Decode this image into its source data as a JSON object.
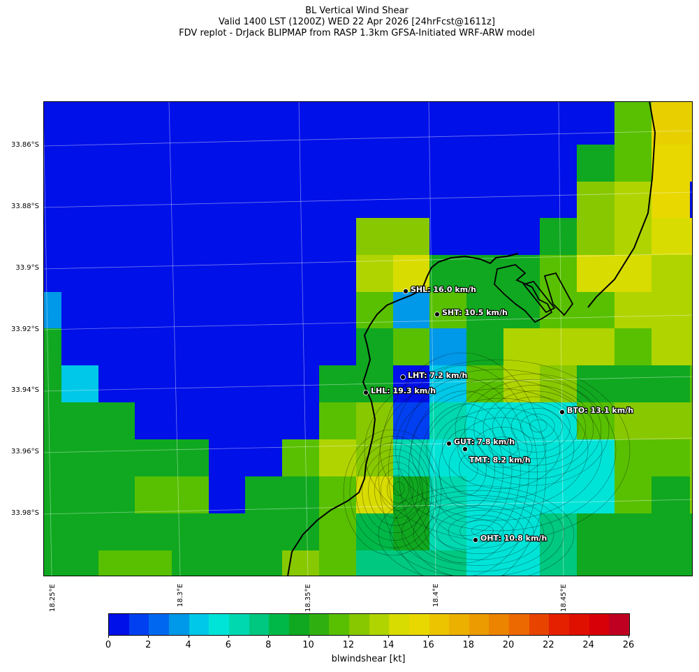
{
  "title": {
    "line1": "BL Vertical Wind Shear",
    "line2": "Valid 1400 LST (1200Z) WED 22 Apr 2026 [24hrFcst@1611z]",
    "line3": "FDV replot - DrJack BLIPMAP from RASP 1.3km GFSA-Initiated WRF-ARW model"
  },
  "lat_labels": [
    "33.86°S",
    "33.88°S",
    "33.9°S",
    "33.92°S",
    "33.94°S",
    "33.96°S",
    "33.98°S"
  ],
  "lon_labels": [
    "18.25°E",
    "18.3°E",
    "18.35°E",
    "18.4°E",
    "18.45°E"
  ],
  "colorbar": {
    "label": "blwindshear [kt]",
    "ticks": [
      "0",
      "2",
      "4",
      "6",
      "8",
      "10",
      "12",
      "14",
      "16",
      "18",
      "20",
      "22",
      "24",
      "26"
    ],
    "colors": [
      "#0010e8",
      "#0040f0",
      "#0068f0",
      "#0098e8",
      "#00c8e8",
      "#00e4d8",
      "#00d8b0",
      "#00c880",
      "#00b848",
      "#10a820",
      "#30b010",
      "#58c000",
      "#88c800",
      "#b0d400",
      "#d8dc00",
      "#e8d800",
      "#ecc400",
      "#ecb000",
      "#ec9c00",
      "#ec8400",
      "#ec6800",
      "#e84400",
      "#e42000",
      "#e01000",
      "#d80008",
      "#c00020"
    ]
  },
  "stations": [
    {
      "code": "SHL",
      "label": "SHL: 16.0 km/h"
    },
    {
      "code": "SHT",
      "label": "SHT: 10.5 km/h"
    },
    {
      "code": "LHT",
      "label": "LHT: 7.2 km/h"
    },
    {
      "code": "LHL",
      "label": "LHL: 19.3 km/h"
    },
    {
      "code": "BTO",
      "label": "BTO: 13.1 km/h"
    },
    {
      "code": "GUT",
      "label": "GUT: 7.8 km/h"
    },
    {
      "code": "TMT",
      "label": "TMT: 8.2 km/h"
    },
    {
      "code": "OHT",
      "label": "OHT: 10.8 km/h"
    }
  ],
  "grid": {
    "rows": [
      "AAAAAAAAAAAAAAAAKPP",
      "AAAAAAAAAAAAAAAJKOP",
      "AAAAAAAAAAAAAAALMOA",
      "AAAAAAAAALLAAAJLMNO",
      "AAAAAAAAAMNJJJKNNMM",
      "DAAAAAAAAKDKJJKKMMM",
      "JAAAAAAAAJKDJMMMKMM",
      "JEAAAAAAJJAEKMLJJJK",
      "JJJAAAAAKLBGFFFKLLL",
      "JJJJJAAKMLGFFFFFKKL",
      "JJJKKAJJKNJGFFFFKJL",
      "JJJJJJJJKIJGFFHJJJJ",
      "JJKKJJJLKHHHFFHJJJJ",
      "JJKKJJJLLGGGGFKJJJJ"
    ],
    "key": {
      "A": "#0010e8",
      "B": "#0040f0",
      "D": "#0098e8",
      "E": "#00c8e8",
      "F": "#00e4d8",
      "G": "#00d8b0",
      "H": "#00c880",
      "I": "#00b848",
      "J": "#10a820",
      "K": "#58c000",
      "L": "#88c800",
      "M": "#b0d400",
      "N": "#d8dc00",
      "O": "#e8d800",
      "P": "#e8d000"
    }
  }
}
